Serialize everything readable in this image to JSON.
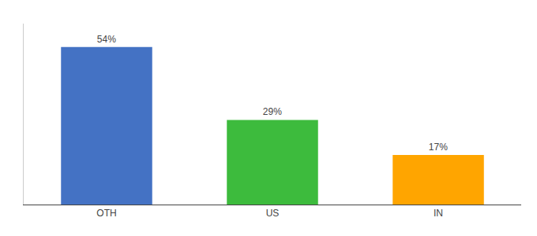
{
  "chart_data": {
    "type": "bar",
    "categories": [
      "OTH",
      "US",
      "IN"
    ],
    "values": [
      54,
      29,
      17
    ],
    "value_labels": [
      "54%",
      "29%",
      "17%"
    ],
    "colors": [
      "#4472C4",
      "#3DBB3D",
      "#FFA500"
    ],
    "ylim": [
      0,
      62
    ],
    "data_labels": true,
    "grid": false,
    "tick_labels": "x"
  }
}
